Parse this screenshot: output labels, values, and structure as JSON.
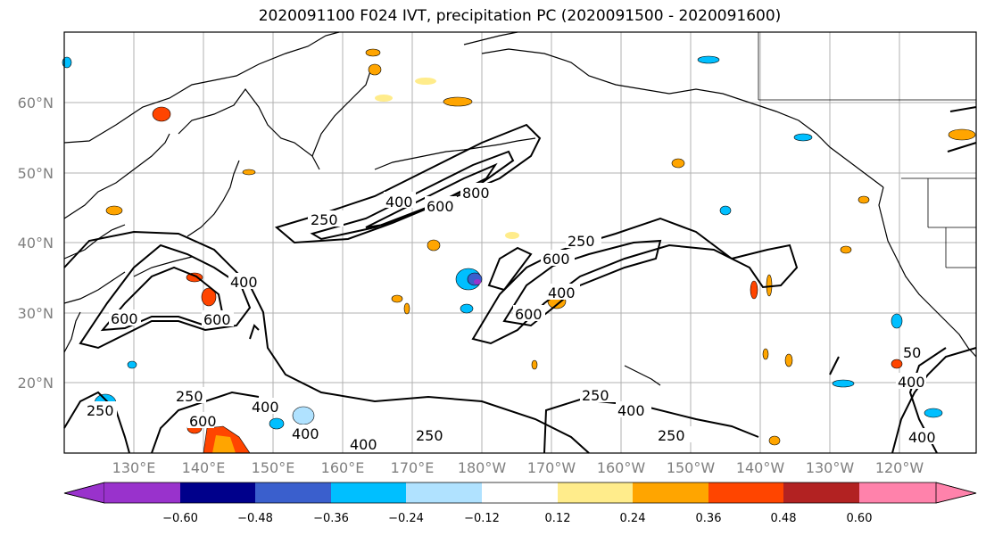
{
  "title": "2020091100 F024 IVT, precipitation PC (2020091500 - 2020091600)",
  "lat_labels": [
    "60°N",
    "50°N",
    "40°N",
    "30°N",
    "20°N"
  ],
  "lon_labels": [
    "130°E",
    "140°E",
    "150°E",
    "160°E",
    "170°E",
    "180°W",
    "170°W",
    "160°W",
    "150°W",
    "140°W",
    "130°W",
    "120°W"
  ],
  "contour_labels": [
    "250",
    "400",
    "600",
    "800",
    "600",
    "250",
    "600",
    "400",
    "600",
    "600",
    "400",
    "600",
    "250",
    "400",
    "400",
    "250",
    "250",
    "400",
    "250",
    "400",
    "250",
    "50",
    "400",
    "400"
  ],
  "colorbar": {
    "ticks": [
      "−0.60",
      "−0.48",
      "−0.36",
      "−0.24",
      "−0.12",
      "0.12",
      "0.24",
      "0.36",
      "0.48",
      "0.60"
    ],
    "colors": [
      "#9932CC",
      "#00008B",
      "#3A5FCD",
      "#00BFFF",
      "#B0E2FF",
      "#FFFFFF",
      "#FFEC8B",
      "#FFA500",
      "#FF4500",
      "#B22222",
      "#FF82AB"
    ]
  }
}
